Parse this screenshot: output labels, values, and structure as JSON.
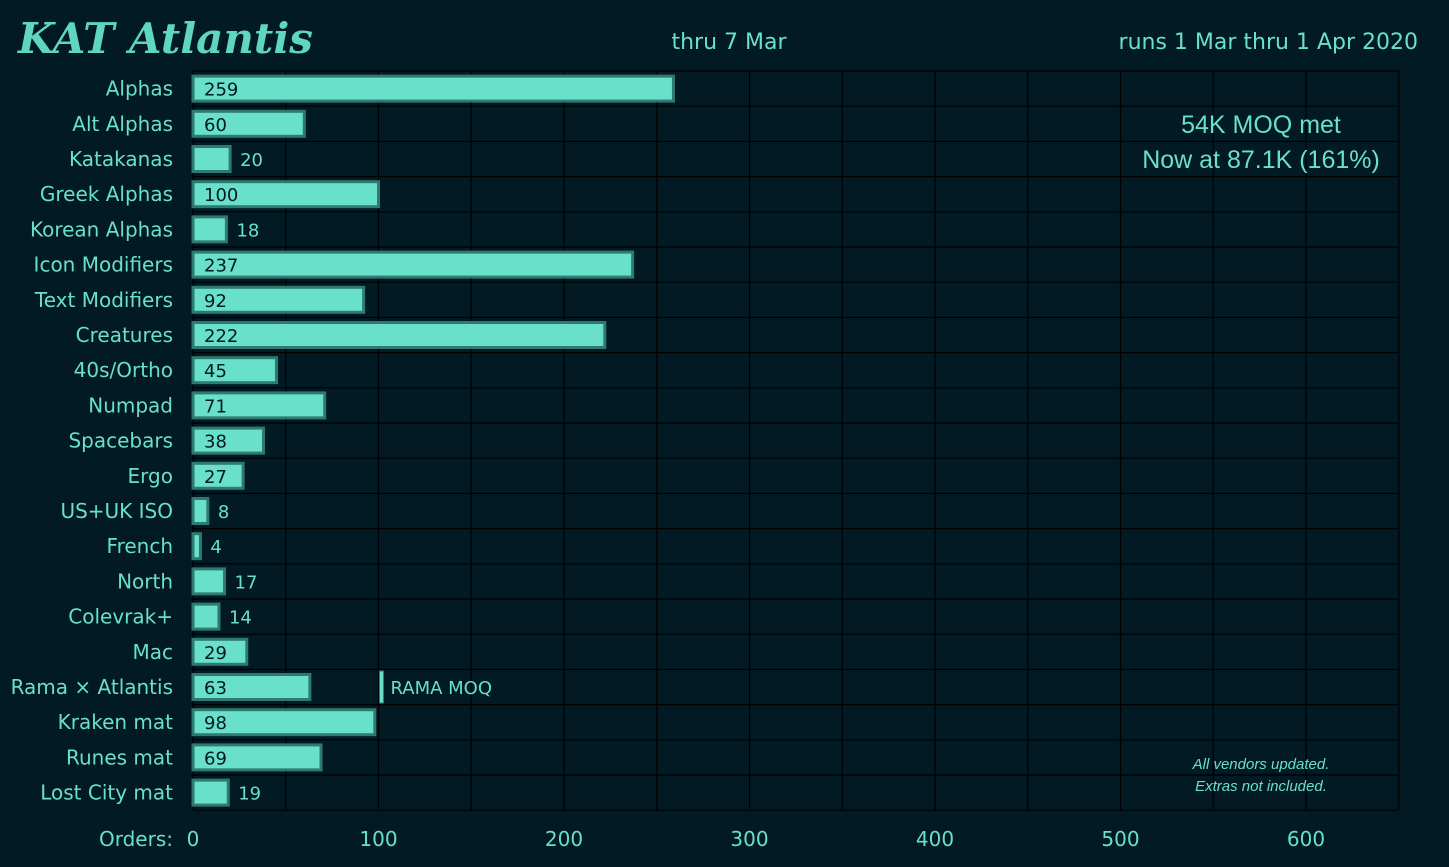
{
  "header": {
    "title": "KAT Atlantis",
    "date_label": "thru 7 Mar",
    "run_label": "runs 1 Mar thru 1 Apr 2020"
  },
  "notes": {
    "moq_met": "54K MOQ met",
    "now_at": "Now at 87.1K (161%)",
    "vendors": "All vendors updated.",
    "extras": "Extras not included.",
    "rama_moq": "RAMA MOQ"
  },
  "colors": {
    "background": "#021a24",
    "bar_fill": "#69e0cc",
    "bar_border": "#2f7a70",
    "text": "#69e0cc",
    "grid": "#000000"
  },
  "chart_data": {
    "type": "bar",
    "orientation": "horizontal",
    "xlabel": "Orders:",
    "xlim": [
      0,
      650
    ],
    "xticks": [
      0,
      100,
      200,
      300,
      400,
      500,
      600
    ],
    "grid": true,
    "categories": [
      "Alphas",
      "Alt Alphas",
      "Katakanas",
      "Greek Alphas",
      "Korean Alphas",
      "Icon Modifiers",
      "Text Modifiers",
      "Creatures",
      "40s/Ortho",
      "Numpad",
      "Spacebars",
      "Ergo",
      "US+UK ISO",
      "French",
      "North",
      "Colevrak+",
      "Mac",
      "Rama × Atlantis",
      "Kraken mat",
      "Runes mat",
      "Lost City mat"
    ],
    "values": [
      259,
      60,
      20,
      100,
      18,
      237,
      92,
      222,
      45,
      71,
      38,
      27,
      8,
      4,
      17,
      14,
      29,
      63,
      98,
      69,
      19
    ],
    "annotations": [
      {
        "category": "Rama × Atlantis",
        "value": 100,
        "label": "RAMA MOQ"
      }
    ]
  }
}
